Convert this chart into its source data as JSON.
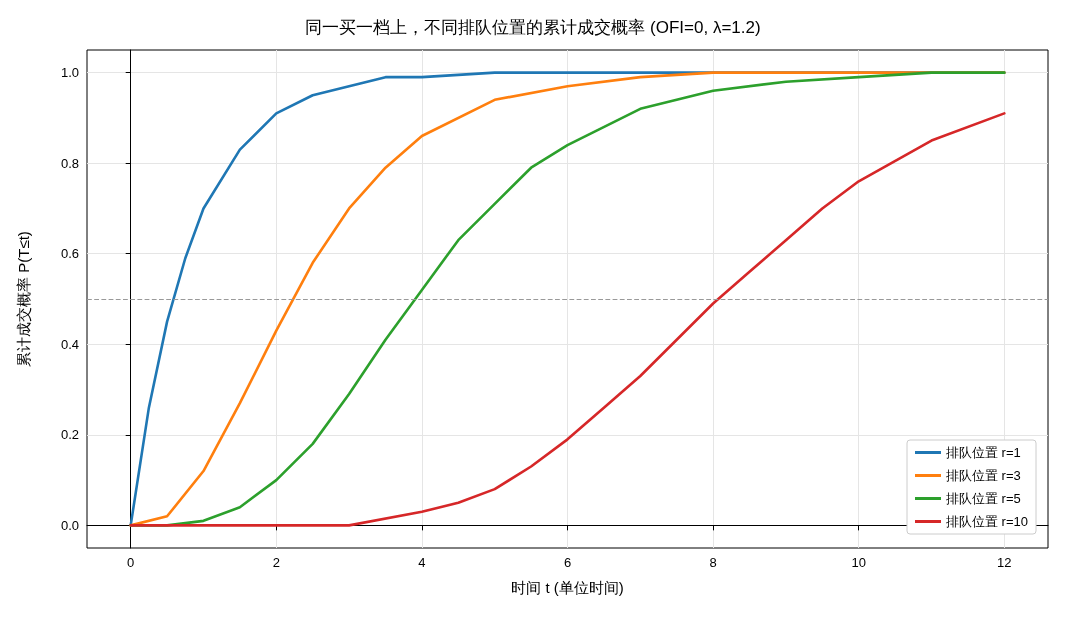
{
  "chart_data": {
    "type": "line",
    "title": "同一买一档上，不同排队位置的累计成交概率 (OFI=0, λ=1.2)",
    "xlabel": "时间 t (单位时间)",
    "ylabel": "累计成交概率 P(T≤t)",
    "series": [
      {
        "name": "排队位置 r=1",
        "color": "#1f77b4",
        "x": [
          0,
          0.25,
          0.5,
          0.75,
          1,
          1.5,
          2,
          2.5,
          3,
          3.5,
          4,
          5,
          6,
          12
        ],
        "values": [
          0,
          0.26,
          0.45,
          0.59,
          0.7,
          0.83,
          0.91,
          0.95,
          0.97,
          0.99,
          0.99,
          1.0,
          1.0,
          1.0
        ]
      },
      {
        "name": "排队位置 r=3",
        "color": "#ff7f0e",
        "x": [
          0,
          0.5,
          1,
          1.5,
          2,
          2.5,
          3,
          3.5,
          4,
          5,
          6,
          7,
          8,
          10,
          12
        ],
        "values": [
          0,
          0.02,
          0.12,
          0.27,
          0.43,
          0.58,
          0.7,
          0.79,
          0.86,
          0.94,
          0.97,
          0.99,
          1.0,
          1.0,
          1.0
        ]
      },
      {
        "name": "排队位置 r=5",
        "color": "#2ca02c",
        "x": [
          0,
          0.5,
          1,
          1.5,
          2,
          2.5,
          3,
          3.5,
          4,
          4.5,
          5,
          5.5,
          6,
          7,
          8,
          9,
          10,
          11,
          12
        ],
        "values": [
          0,
          0,
          0.01,
          0.04,
          0.1,
          0.18,
          0.29,
          0.41,
          0.52,
          0.63,
          0.71,
          0.79,
          0.84,
          0.92,
          0.96,
          0.98,
          0.99,
          1.0,
          1.0
        ]
      },
      {
        "name": "排队位置 r=10",
        "color": "#d62728",
        "x": [
          0,
          2,
          3,
          4,
          4.5,
          5,
          5.5,
          6,
          6.5,
          7,
          7.5,
          8,
          8.5,
          9,
          9.5,
          10,
          11,
          12
        ],
        "values": [
          0,
          0,
          0.0,
          0.03,
          0.05,
          0.08,
          0.13,
          0.19,
          0.26,
          0.33,
          0.41,
          0.49,
          0.56,
          0.63,
          0.7,
          0.76,
          0.85,
          0.91
        ]
      }
    ],
    "xlim": [
      -0.6,
      12.6
    ],
    "xticks": [
      0,
      2,
      4,
      6,
      8,
      10,
      12
    ],
    "ylim": [
      -0.05,
      1.05
    ],
    "yticks": [
      {
        "value": 0,
        "label": "0.0"
      },
      {
        "value": 0.2,
        "label": "0.2"
      },
      {
        "value": 0.4,
        "label": "0.4"
      },
      {
        "value": 0.6,
        "label": "0.6"
      },
      {
        "value": 0.8,
        "label": "0.8"
      },
      {
        "value": 1,
        "label": "1.0"
      }
    ],
    "ref_lines": [
      {
        "axis": "y",
        "value": 0.5,
        "color": "#999999",
        "line_style": "dashed"
      }
    ],
    "grid": true,
    "legend": "bottom right",
    "marker": "none",
    "line_style": "solid"
  }
}
